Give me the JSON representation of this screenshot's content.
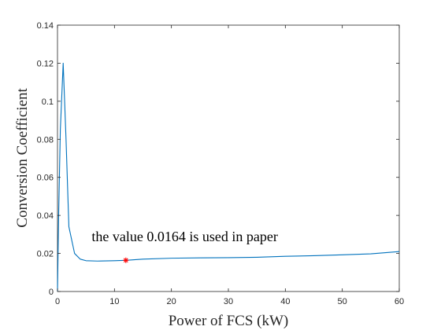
{
  "chart_data": {
    "type": "line",
    "xlabel": "Power of FCS (kW)",
    "ylabel": "Conversion Coefficient",
    "xlim": [
      0,
      60
    ],
    "ylim": [
      0,
      0.14
    ],
    "grid": false,
    "x_ticks": [
      0,
      10,
      20,
      30,
      40,
      50,
      60
    ],
    "x_tick_labels": [
      "0",
      "10",
      "20",
      "30",
      "40",
      "50",
      "60"
    ],
    "y_ticks": [
      0,
      0.02,
      0.04,
      0.06,
      0.08,
      0.1,
      0.12,
      0.14
    ],
    "y_tick_labels": [
      "0",
      "0.02",
      "0.04",
      "0.06",
      "0.08",
      "0.1",
      "0.12",
      "0.14"
    ],
    "series": [
      {
        "color": "#0072BD",
        "points": [
          [
            0,
            0.0
          ],
          [
            0.2,
            0.04
          ],
          [
            0.5,
            0.085
          ],
          [
            1.0,
            0.12
          ],
          [
            1.5,
            0.08
          ],
          [
            2.0,
            0.034
          ],
          [
            3.0,
            0.02
          ],
          [
            4.0,
            0.017
          ],
          [
            5.0,
            0.0162
          ],
          [
            7.0,
            0.016
          ],
          [
            10.0,
            0.0162
          ],
          [
            12.0,
            0.0164
          ],
          [
            15.0,
            0.017
          ],
          [
            20.0,
            0.0175
          ],
          [
            25.0,
            0.0177
          ],
          [
            30.0,
            0.0178
          ],
          [
            35.0,
            0.018
          ],
          [
            40.0,
            0.0185
          ],
          [
            45.0,
            0.0188
          ],
          [
            50.0,
            0.0193
          ],
          [
            55.0,
            0.0198
          ],
          [
            60.0,
            0.021
          ]
        ]
      }
    ],
    "marker": {
      "x": 12.0,
      "y": 0.0164,
      "symbol": "*",
      "color": "#FF0000"
    },
    "annotation": {
      "text": "the value 0.0164 is used in paper",
      "x": 6.0,
      "y": 0.0265
    }
  }
}
